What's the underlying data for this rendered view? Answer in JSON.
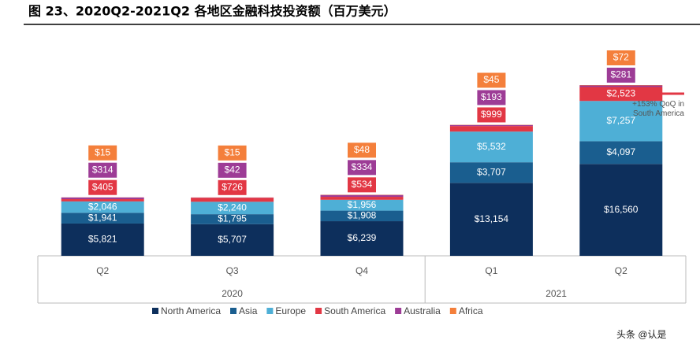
{
  "chart_data": {
    "type": "stacked_bar",
    "title": "图 23、2020Q2-2021Q2 各地区金融科技投资额（百万美元）",
    "categories": [
      "Q2",
      "Q3",
      "Q4",
      "Q1",
      "Q2"
    ],
    "groups": [
      "2020",
      "2021"
    ],
    "series": [
      {
        "name": "North America",
        "color": "#0d2f5c",
        "values": [
          5821,
          5707,
          6239,
          13154,
          16560
        ],
        "value_labels": [
          "$5,821",
          "$5,707",
          "$6,239",
          "$13,154",
          "$16,560"
        ]
      },
      {
        "name": "Asia",
        "color": "#1a5e8f",
        "values": [
          1941,
          1795,
          1908,
          3707,
          4097
        ],
        "value_labels": [
          "$1,941",
          "$1,795",
          "$1,908",
          "$3,707",
          "$4,097"
        ]
      },
      {
        "name": "Europe",
        "color": "#4eafd6",
        "values": [
          2046,
          2240,
          1956,
          5532,
          7257
        ],
        "value_labels": [
          "$2,046",
          "$2,240",
          "$1,956",
          "$5,532",
          "$7,257"
        ]
      },
      {
        "name": "South America",
        "color": "#e23744",
        "values": [
          405,
          726,
          534,
          999,
          2523
        ],
        "value_labels": [
          "$405",
          "$726",
          "$534",
          "$999",
          "$2,523"
        ]
      },
      {
        "name": "Australia",
        "color": "#9d3c96",
        "values": [
          314,
          42,
          334,
          193,
          281
        ],
        "value_labels": [
          "$314",
          "$42",
          "$334",
          "$193",
          "$281"
        ]
      },
      {
        "name": "Africa",
        "color": "#f47f3b",
        "values": [
          15,
          15,
          48,
          45,
          72
        ],
        "value_labels": [
          "$15",
          "$15",
          "$48",
          "$45",
          "$72"
        ]
      }
    ],
    "annotation": "+153% QoQ in South America",
    "watermark": "头条 @认是"
  }
}
